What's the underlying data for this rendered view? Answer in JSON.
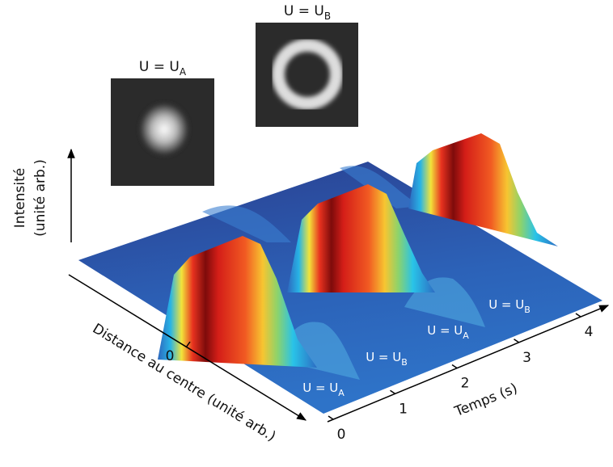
{
  "insets": [
    {
      "label": "U = U",
      "sub": "A"
    },
    {
      "label": "U = U",
      "sub": "B"
    }
  ],
  "axes": {
    "intensity": {
      "lines": [
        "Intensité",
        "(unité arb.)"
      ]
    },
    "distance": {
      "label": "Distance au centre (unité arb.)",
      "ticks": [
        0
      ]
    },
    "time": {
      "label": "Temps (s)",
      "ticks": [
        0,
        1,
        2,
        3,
        4
      ]
    }
  },
  "surface_labels": [
    {
      "label": "U = U",
      "sub": "A"
    },
    {
      "label": "U = U",
      "sub": "B"
    },
    {
      "label": "U = U",
      "sub": "A"
    },
    {
      "label": "U = U",
      "sub": "B"
    }
  ]
}
